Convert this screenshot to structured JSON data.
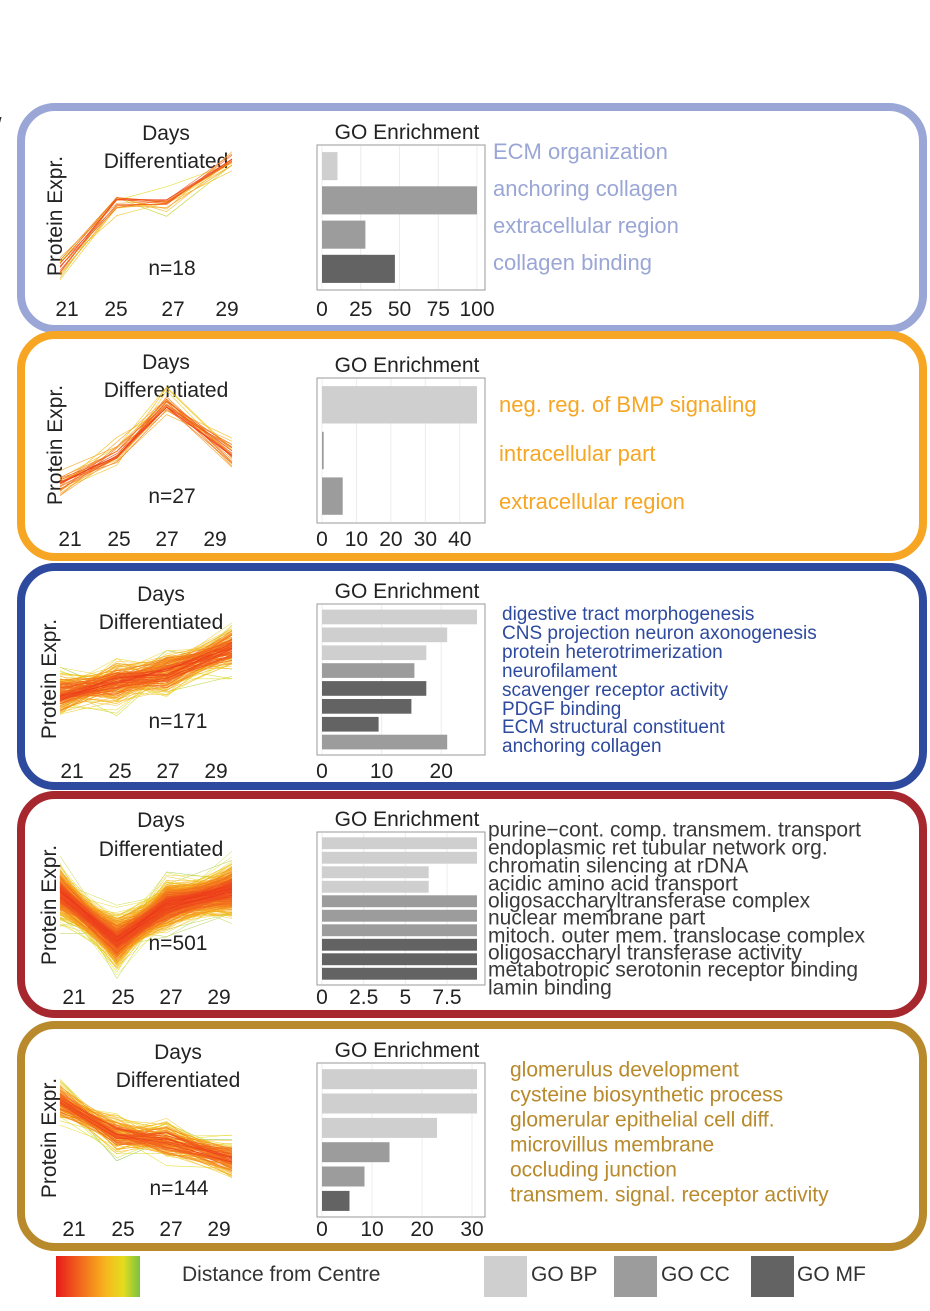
{
  "panel_label": "/",
  "common": {
    "line_title_1": "Days",
    "line_title_2": "Differentiated",
    "ylabel": "Protein Expr.",
    "bar_title": "GO Enrichment",
    "days": [
      "21",
      "25",
      "27",
      "29"
    ]
  },
  "legend": {
    "gradient_label": "Distance from Centre",
    "gradient_colors": [
      "#e8191b",
      "#f26b1d",
      "#f7b81d",
      "#e3dd1e",
      "#7ac142"
    ],
    "items": [
      {
        "label": "GO BP",
        "color": "#cfcfcf"
      },
      {
        "label": "GO CC",
        "color": "#9c9c9c"
      },
      {
        "label": "GO MF",
        "color": "#636363"
      }
    ]
  },
  "go_colors": {
    "BP": "#cfcfcf",
    "CC": "#9c9c9c",
    "MF": "#636363"
  },
  "chart_data": [
    {
      "type": "line+bar",
      "cluster_color": "#9aa6d6",
      "text_color": "#9aa6d6",
      "n_label": "n=18",
      "lines": {
        "n": 18,
        "profile": [
          -0.9,
          0.2,
          0.2,
          0.9
        ],
        "spread": 0.09,
        "width": 0.7
      },
      "bars": {
        "max": 100,
        "ticks": [
          "0",
          "25",
          "50",
          "75",
          "100"
        ],
        "terms": [
          {
            "term": "ECM organization",
            "category": "BP",
            "value": 10
          },
          {
            "term": "anchoring collagen",
            "category": "CC",
            "value": 100
          },
          {
            "term": "extracellular region",
            "category": "CC",
            "value": 28
          },
          {
            "term": "collagen binding",
            "category": "MF",
            "value": 47
          }
        ]
      }
    },
    {
      "type": "line+bar",
      "cluster_color": "#f6a623",
      "text_color": "#f6a623",
      "n_label": "n=27",
      "lines": {
        "n": 27,
        "profile": [
          -0.6,
          -0.1,
          0.7,
          -0.1
        ],
        "spread": 0.12,
        "width": 0.7
      },
      "bars": {
        "max": 45,
        "ticks": [
          "0",
          "10",
          "20",
          "30",
          "40"
        ],
        "terms": [
          {
            "term": "neg. reg. of BMP signaling",
            "category": "BP",
            "value": 45
          },
          {
            "term": "intracellular part",
            "category": "CC",
            "value": 0.5
          },
          {
            "term": "extracellular region",
            "category": "CC",
            "value": 6
          }
        ]
      }
    },
    {
      "type": "line+bar",
      "cluster_color": "#2e4a9e",
      "text_color": "#2e4a9e",
      "n_label": "n=171",
      "lines": {
        "n": 171,
        "profile": [
          -0.3,
          -0.1,
          0.05,
          0.45
        ],
        "spread": 0.16,
        "width": 0.55
      },
      "bars": {
        "max": 26,
        "ticks": [
          "0",
          "10",
          "20"
        ],
        "terms": [
          {
            "term": "digestive tract morphogenesis",
            "category": "BP",
            "value": 26
          },
          {
            "term": "CNS projection neuron axonogenesis",
            "category": "BP",
            "value": 21
          },
          {
            "term": "protein heterotrimerization",
            "category": "BP",
            "value": 17.5
          },
          {
            "term": "neurofilament",
            "category": "CC",
            "value": 15.5
          },
          {
            "term": "scavenger receptor activity",
            "category": "MF",
            "value": 17.5
          },
          {
            "term": "PDGF binding",
            "category": "MF",
            "value": 15
          },
          {
            "term": "ECM structural constituent",
            "category": "MF",
            "value": 9.5
          },
          {
            "term": "anchoring collagen",
            "category": "CC",
            "value": 21
          }
        ]
      }
    },
    {
      "type": "line+bar",
      "cluster_color": "#a6272d",
      "text_color": "#3a3a3a",
      "n_label": "n=501",
      "lines": {
        "n": 501,
        "profile": [
          0.2,
          -0.55,
          0.0,
          0.25
        ],
        "spread": 0.18,
        "width": 0.5
      },
      "bars": {
        "max": 9.3,
        "ticks": [
          "0",
          "2.5",
          "5",
          "7.5"
        ],
        "terms": [
          {
            "term": "purine−cont. comp. transmem. transport",
            "category": "BP",
            "value": 9.3
          },
          {
            "term": "endoplasmic ret tubular network org.",
            "category": "BP",
            "value": 9.3
          },
          {
            "term": "chromatin silencing at rDNA",
            "category": "BP",
            "value": 6.4
          },
          {
            "term": "acidic amino acid transport",
            "category": "BP",
            "value": 6.4
          },
          {
            "term": "oligosaccharyltransferase complex",
            "category": "CC",
            "value": 9.3
          },
          {
            "term": "nuclear membrane part",
            "category": "CC",
            "value": 9.3
          },
          {
            "term": "mitoch. outer mem. translocase complex",
            "category": "CC",
            "value": 9.3
          },
          {
            "term": "oligosaccharyl transferase activity",
            "category": "MF",
            "value": 9.3
          },
          {
            "term": "metabotropic serotonin receptor binding",
            "category": "MF",
            "value": 9.3
          },
          {
            "term": "lamin binding",
            "category": "MF",
            "value": 9.3
          }
        ]
      }
    },
    {
      "type": "line+bar",
      "cluster_color": "#b88a2c",
      "text_color": "#b88a2c",
      "n_label": "n=144",
      "lines": {
        "n": 144,
        "profile": [
          0.55,
          0.05,
          -0.05,
          -0.35
        ],
        "spread": 0.13,
        "width": 0.55
      },
      "bars": {
        "max": 31,
        "ticks": [
          "0",
          "10",
          "20",
          "30"
        ],
        "terms": [
          {
            "term": "glomerulus development",
            "category": "BP",
            "value": 31
          },
          {
            "term": "cysteine biosynthetic process",
            "category": "BP",
            "value": 31
          },
          {
            "term": "glomerular epithelial cell diff.",
            "category": "BP",
            "value": 23
          },
          {
            "term": "microvillus membrane",
            "category": "CC",
            "value": 13.5
          },
          {
            "term": "occluding junction",
            "category": "CC",
            "value": 8.5
          },
          {
            "term": "transmem. signal. receptor activity",
            "category": "MF",
            "value": 5.5
          }
        ]
      }
    }
  ]
}
